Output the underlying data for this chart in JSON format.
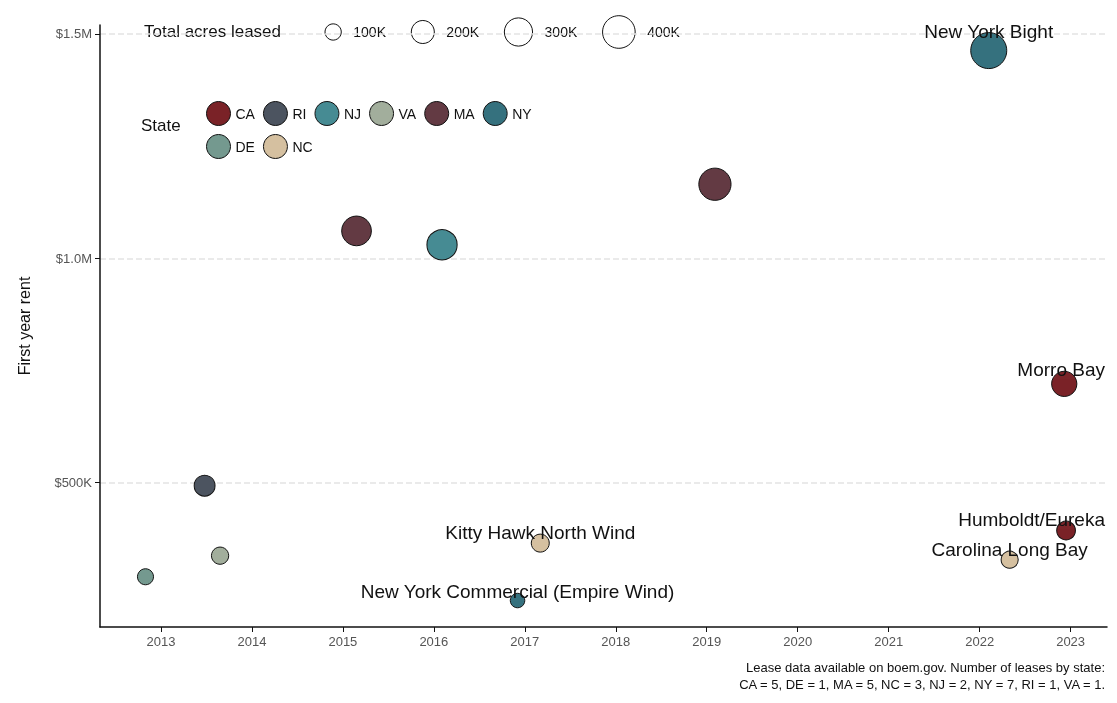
{
  "chart_data": {
    "type": "bubble",
    "ylabel": "First year rent",
    "legend_title": "State",
    "xlim": [
      2012.33,
      2023.4
    ],
    "xticks": [
      2013,
      2014,
      2015,
      2016,
      2017,
      2018,
      2019,
      2020,
      2021,
      2022,
      2023
    ],
    "ylim": [
      178000,
      1520000
    ],
    "yticks": [
      {
        "value": 500000,
        "label": "$500K"
      },
      {
        "value": 1000000,
        "label": "$1.0M"
      },
      {
        "value": 1500000,
        "label": "$1.5M"
      }
    ],
    "size_legend": [
      {
        "value": 100000,
        "label": "100K"
      },
      {
        "value": 200000,
        "label": "200K"
      },
      {
        "value": 300000,
        "label": "300K"
      },
      {
        "value": 400000,
        "label": "400K"
      }
    ],
    "series": [
      {
        "name": "CA",
        "color": "#7a2227",
        "x": [
          2022.93,
          2022.95
        ],
        "values": [
          720000,
          393000
        ],
        "sizes": [
          240000,
          132000
        ]
      },
      {
        "name": "RI",
        "color": "#4c5460",
        "x": [
          2013.48
        ],
        "values": [
          493000
        ],
        "sizes": [
          164000
        ]
      },
      {
        "name": "NJ",
        "color": "#468b93",
        "x": [
          2016.09
        ],
        "values": [
          1030000
        ],
        "sizes": [
          344000
        ]
      },
      {
        "name": "VA",
        "color": "#a2ae9c",
        "x": [
          2013.65
        ],
        "values": [
          337000
        ],
        "sizes": [
          112000
        ]
      },
      {
        "name": "MA",
        "color": "#633a43",
        "x": [
          2015.15,
          2019.09
        ],
        "values": [
          1061000,
          1165000
        ],
        "sizes": [
          333000,
          390000
        ]
      },
      {
        "name": "NY",
        "color": "#35717e",
        "x": [
          2016.92,
          2022.1
        ],
        "values": [
          237000,
          1463000
        ],
        "sizes": [
          79000,
          488000
        ]
      },
      {
        "name": "DE",
        "color": "#74998f",
        "x": [
          2012.83
        ],
        "values": [
          290000
        ],
        "sizes": [
          97000
        ]
      },
      {
        "name": "NC",
        "color": "#d5c0a0",
        "x": [
          2017.17,
          2022.33
        ],
        "values": [
          365000,
          328000
        ],
        "sizes": [
          122000,
          110000
        ]
      }
    ],
    "grid": "y",
    "legend": "top left",
    "marker": "circle",
    "annotations": [
      "Total acres leased",
      {
        "text": "New York Bight",
        "x": 2022.1,
        "y": 1463000
      },
      {
        "text": "Morro Bay",
        "x": 2022.93,
        "y": 720000
      },
      {
        "text": "Humboldt/Eureka",
        "x": 2022.95,
        "y": 393000
      },
      {
        "text": "Carolina Long Bay",
        "x": 2022.33,
        "y": 328000
      },
      {
        "text": "Kitty Hawk North Wind",
        "x": 2017.17,
        "y": 365000
      },
      {
        "text": "New York Commercial (Empire Wind)",
        "x": 2016.92,
        "y": 237000
      },
      "Lease data available on boem.gov. Number of leases by state:\nCA = 5, DE = 1, MA = 5, NC = 3, NJ = 2, NY = 7, RI = 1, VA = 1."
    ]
  }
}
